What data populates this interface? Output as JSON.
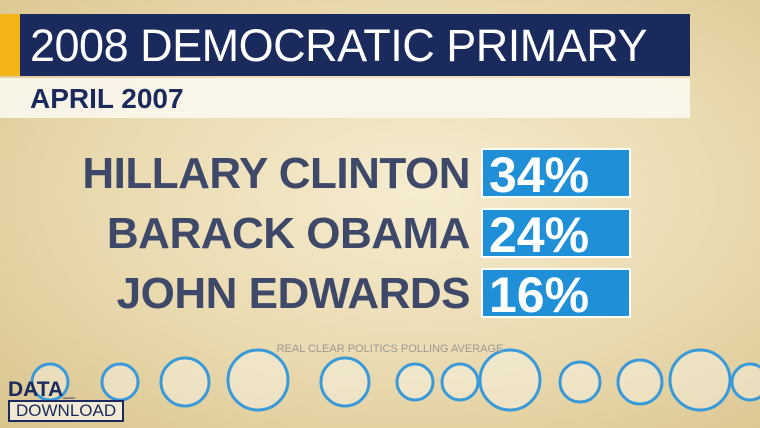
{
  "header": {
    "title": "2008 DEMOCRATIC PRIMARY",
    "subtitle": "APRIL 2007"
  },
  "rows": [
    {
      "name": "HILLARY CLINTON",
      "value": "34%"
    },
    {
      "name": "BARACK OBAMA",
      "value": "24%"
    },
    {
      "name": "JOHN EDWARDS",
      "value": "16%"
    }
  ],
  "source": "REAL CLEAR POLITICS POLLING AVERAGE",
  "logo": {
    "line1": "DATA_",
    "line2": "DOWNLOAD"
  }
}
